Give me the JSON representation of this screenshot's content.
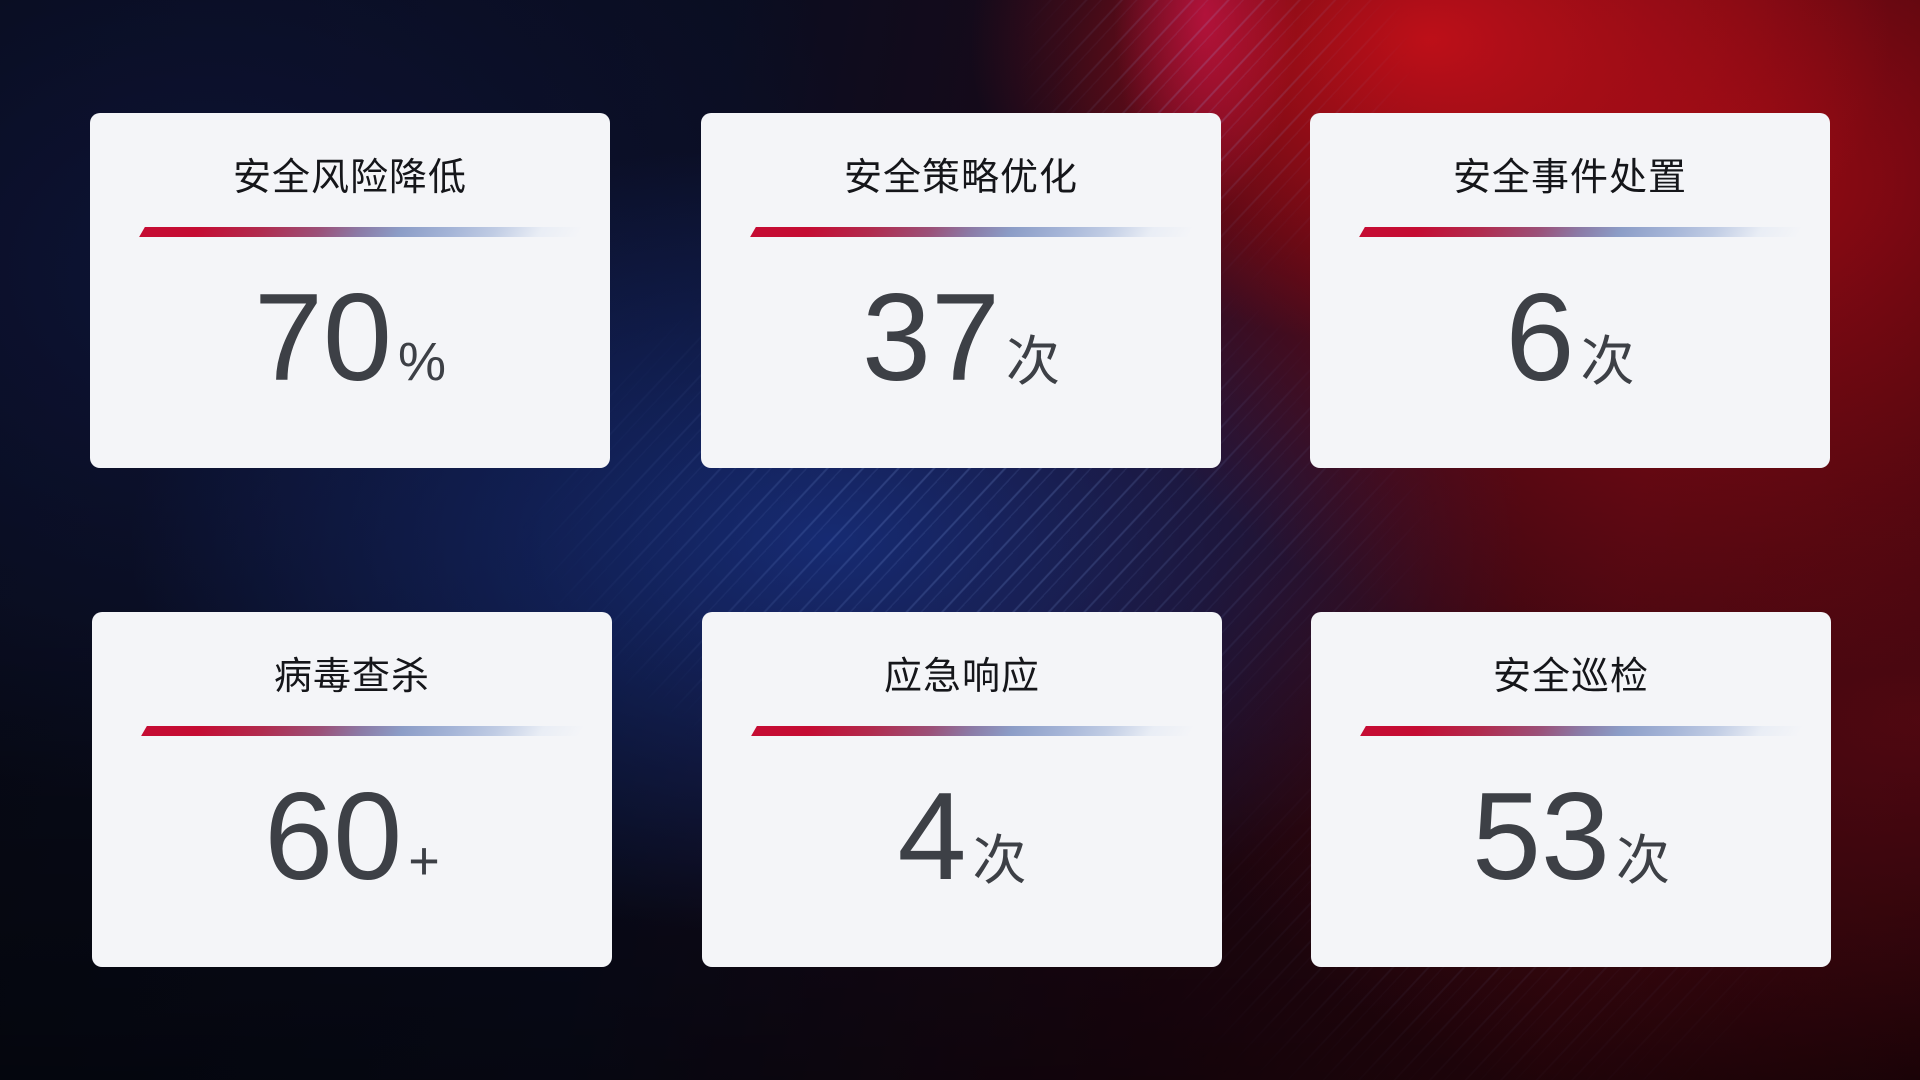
{
  "theme": {
    "card_bg": "#f4f5f8",
    "title_color": "#15161a",
    "value_color": "#3d4046",
    "divider_red": "#c50c33",
    "divider_blue": "#8c9dc7",
    "bg_navy": "#17307e",
    "bg_red": "#a50c16"
  },
  "cards": [
    {
      "label": "安全风险降低",
      "value": "70",
      "unit": "%"
    },
    {
      "label": "安全策略优化",
      "value": "37",
      "unit": "次"
    },
    {
      "label": "安全事件处置",
      "value": "6",
      "unit": "次"
    },
    {
      "label": "病毒查杀",
      "value": "60",
      "unit": "+"
    },
    {
      "label": "应急响应",
      "value": "4",
      "unit": "次"
    },
    {
      "label": "安全巡检",
      "value": "53",
      "unit": "次"
    }
  ]
}
